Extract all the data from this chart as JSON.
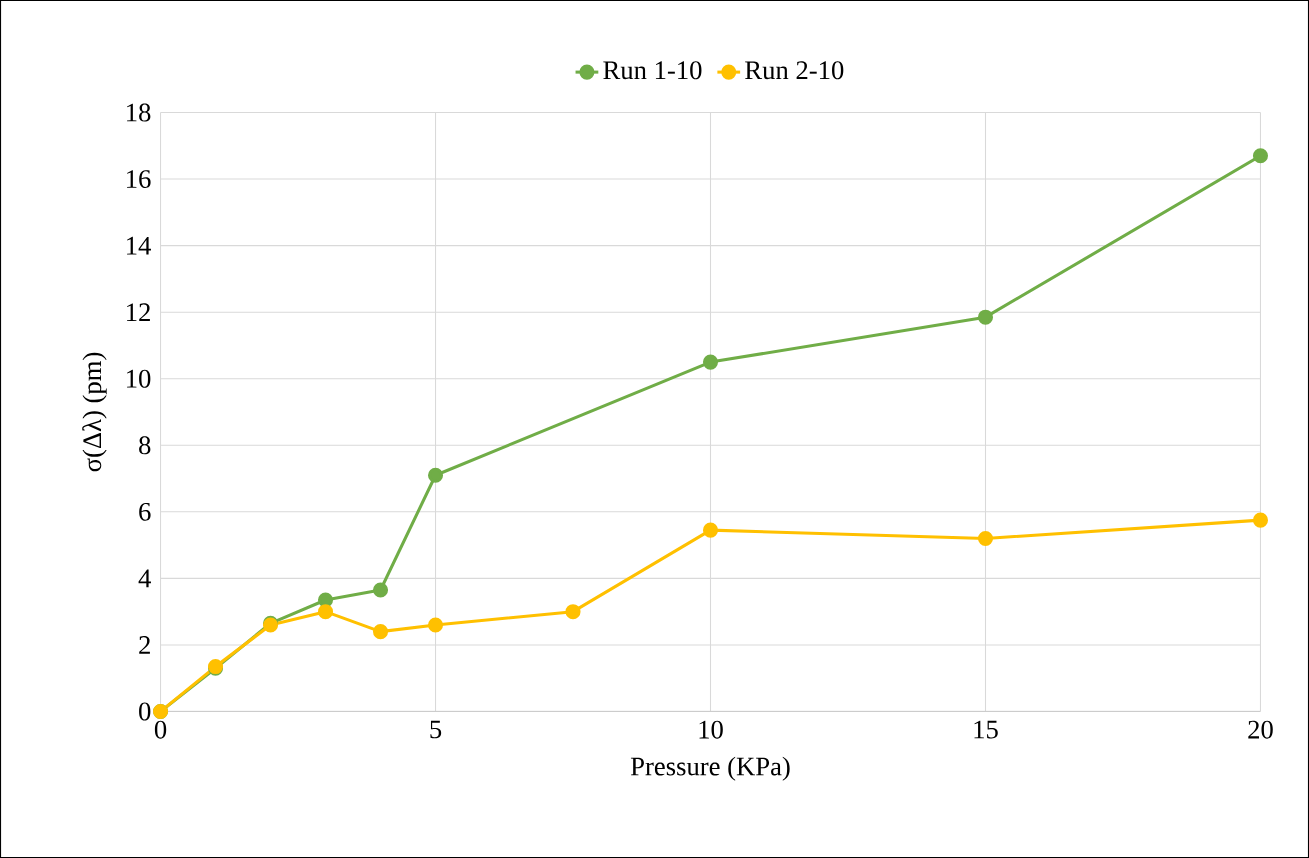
{
  "chart_data": {
    "type": "line",
    "xlabel": "Pressure (KPa)",
    "ylabel": "σ(Δλ) (pm)",
    "xlim": [
      0,
      20
    ],
    "xticks": [
      0,
      5,
      10,
      15,
      20
    ],
    "ylim": [
      0,
      18
    ],
    "yticks": [
      0,
      2,
      4,
      6,
      8,
      10,
      12,
      14,
      16,
      18
    ],
    "grid": true,
    "legend": "top",
    "marker": "circle",
    "line_style": "solid",
    "series": [
      {
        "name": "Run 1-10",
        "color": "#70ad47",
        "x": [
          0,
          1,
          2,
          3,
          4,
          5,
          10,
          15,
          20
        ],
        "values": [
          0,
          1.3,
          2.65,
          3.35,
          3.65,
          7.1,
          10.5,
          11.85,
          16.7
        ]
      },
      {
        "name": "Run 2-10",
        "color": "#ffc000",
        "x": [
          0,
          1,
          2,
          3,
          4,
          5,
          7.5,
          10,
          15,
          20
        ],
        "values": [
          0,
          1.35,
          2.6,
          3.0,
          2.4,
          2.6,
          3.0,
          5.45,
          5.2,
          5.75
        ]
      }
    ]
  }
}
